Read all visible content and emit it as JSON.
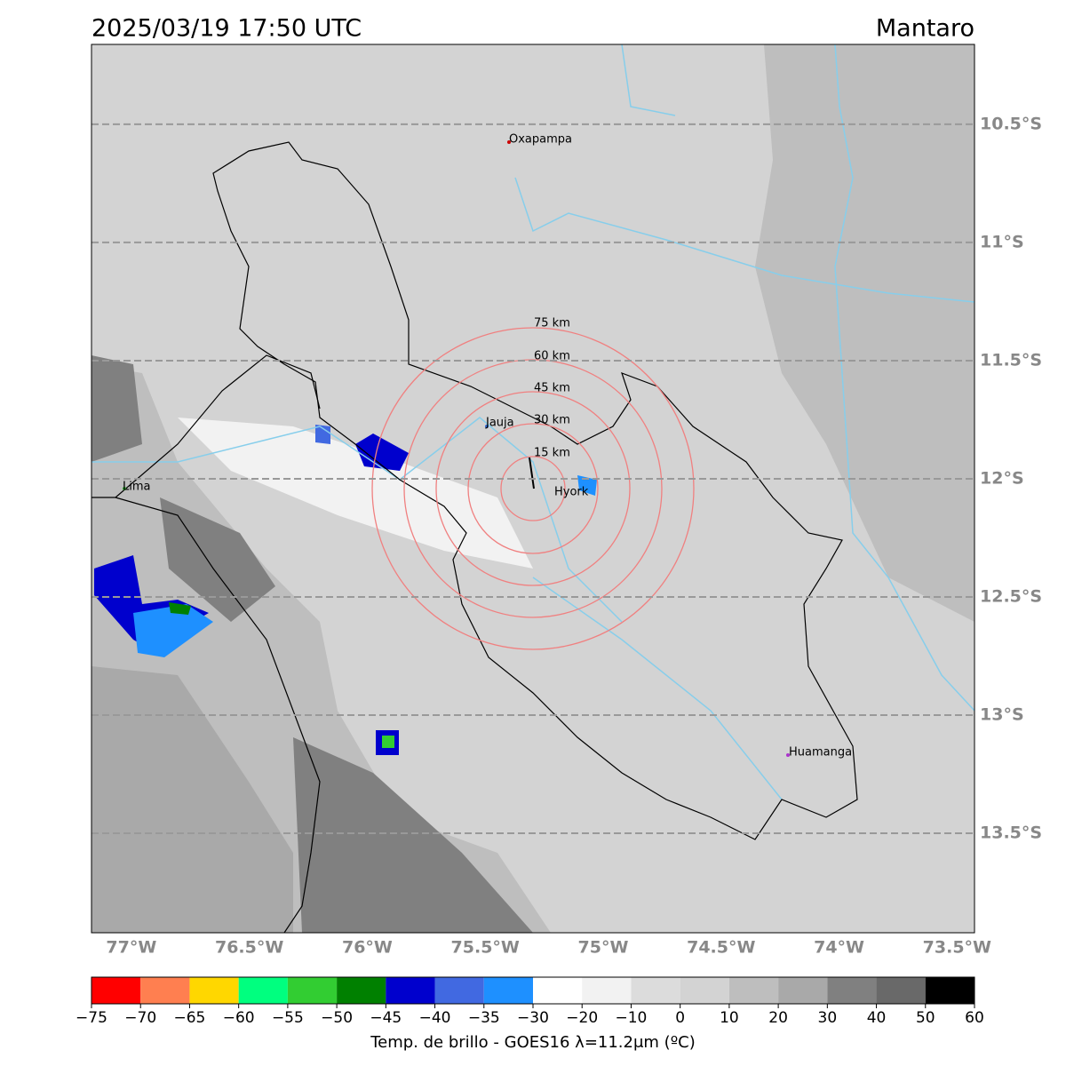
{
  "header": {
    "title": "2025/03/19 17:50 UTC",
    "region": "Mantaro"
  },
  "map": {
    "xlim": [
      -77.169,
      -73.426
    ],
    "ylim": [
      -13.921,
      -10.162
    ],
    "lat_lines": [
      {
        "value": -10.5,
        "label": "10.5°S"
      },
      {
        "value": -11,
        "label": "11°S"
      },
      {
        "value": -11.5,
        "label": "11.5°S"
      },
      {
        "value": -12,
        "label": "12°S"
      },
      {
        "value": -12.5,
        "label": "12.5°S"
      },
      {
        "value": -13,
        "label": "13°S"
      },
      {
        "value": -13.5,
        "label": "13.5°S"
      }
    ],
    "lon_ticks": [
      {
        "value": -77,
        "label": "77°W"
      },
      {
        "value": -76.5,
        "label": "76.5°W"
      },
      {
        "value": -76,
        "label": "76°W"
      },
      {
        "value": -75.5,
        "label": "75.5°W"
      },
      {
        "value": -75,
        "label": "75°W"
      },
      {
        "value": -74.5,
        "label": "74.5°W"
      },
      {
        "value": -74,
        "label": "74°W"
      },
      {
        "value": -73.5,
        "label": "73.5°W"
      }
    ],
    "cities": [
      "Oxapampa",
      "Jauja",
      "Hyork",
      "Lima",
      "Huamanga"
    ],
    "rings": [
      "15 km",
      "30 km",
      "45 km",
      "60 km",
      "75 km"
    ]
  },
  "colorbar": {
    "label": "Temp. de brillo - GOES16 λ=11.2μm (ºC)",
    "ticks": [
      {
        "value": -75,
        "label": "−75"
      },
      {
        "value": -70,
        "label": "−70"
      },
      {
        "value": -65,
        "label": "−65"
      },
      {
        "value": -60,
        "label": "−60"
      },
      {
        "value": -55,
        "label": "−55"
      },
      {
        "value": -50,
        "label": "−50"
      },
      {
        "value": -45,
        "label": "−45"
      },
      {
        "value": -40,
        "label": "−40"
      },
      {
        "value": -35,
        "label": "−35"
      },
      {
        "value": -30,
        "label": "−30"
      },
      {
        "value": -20,
        "label": "−20"
      },
      {
        "value": -10,
        "label": "−10"
      },
      0,
      10,
      20,
      30,
      40,
      50,
      60
    ],
    "colors": [
      "#ff0000",
      "#ff7f50",
      "#ffd700",
      "#00ff7f",
      "#32cd32",
      "#008000",
      "#0000cd",
      "#4169e1",
      "#1e90ff",
      "#ffffff",
      "#f2f2f2",
      "#dcdcdc",
      "#d3d3d3",
      "#bebebe",
      "#a9a9a9",
      "#808080",
      "#696969",
      "#000000"
    ]
  }
}
